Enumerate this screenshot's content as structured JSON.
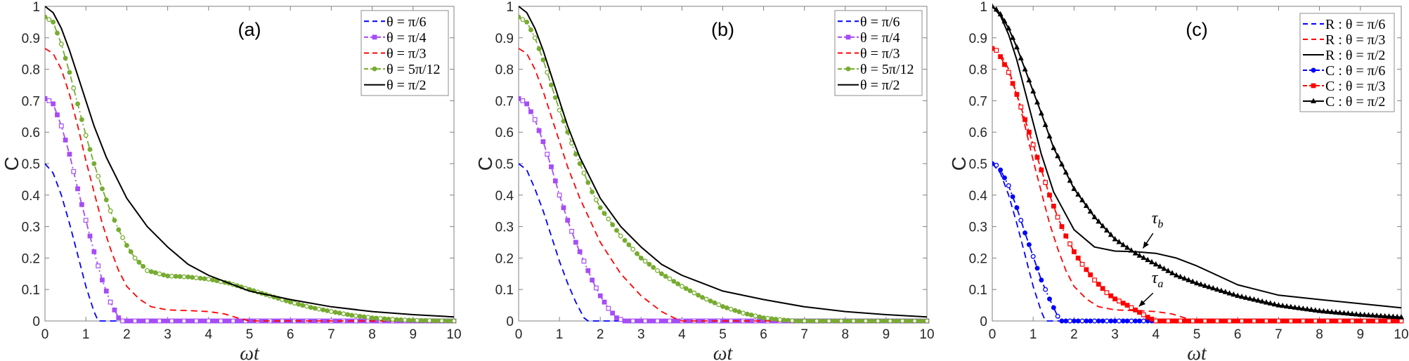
{
  "figure": {
    "colors": {
      "blue": "#0000FF",
      "purple": "#A64DF5",
      "red": "#FF0000",
      "green": "#77AC30",
      "black": "#000000",
      "axis": "#808080"
    }
  },
  "chart_data": [
    {
      "type": "line",
      "panel_label": "(a)",
      "xlabel": "ωt",
      "ylabel": "C",
      "xlim": [
        0,
        10
      ],
      "ylim": [
        0,
        1
      ],
      "xticks": [
        "0",
        "1",
        "2",
        "3",
        "4",
        "5",
        "6",
        "7",
        "8",
        "9",
        "10"
      ],
      "yticks": [
        "0",
        "0.1",
        "0.2",
        "0.3",
        "0.4",
        "0.5",
        "0.6",
        "0.7",
        "0.8",
        "0.9",
        "1"
      ],
      "grid": false,
      "legend_position": "upper right",
      "legend": [
        "θ = π/6",
        "θ = π/4",
        "θ = π/3",
        "θ = 5π/12",
        "θ = π/2"
      ],
      "series": [
        {
          "name": "θ = π/6",
          "color": "blue",
          "style": "dashed",
          "marker": "none",
          "x": [
            0,
            0.2,
            0.4,
            0.6,
            0.8,
            1.0,
            1.2,
            1.3,
            1.4,
            10
          ],
          "y": [
            0.5,
            0.47,
            0.4,
            0.31,
            0.21,
            0.11,
            0.03,
            0.0,
            0.0,
            0.0
          ]
        },
        {
          "name": "θ = π/4",
          "color": "purple",
          "style": "dashdot",
          "marker": "square",
          "x": [
            0,
            0.1,
            0.2,
            0.4,
            0.6,
            0.8,
            1.0,
            1.2,
            1.4,
            1.6,
            1.8,
            1.9,
            10
          ],
          "y": [
            0.707,
            0.7,
            0.69,
            0.62,
            0.53,
            0.42,
            0.32,
            0.22,
            0.13,
            0.06,
            0.01,
            0.0,
            0.0
          ]
        },
        {
          "name": "θ = π/3",
          "color": "red",
          "style": "dashed",
          "marker": "none",
          "x": [
            0,
            0.2,
            0.4,
            0.6,
            0.8,
            1.0,
            1.2,
            1.4,
            1.6,
            1.8,
            2.0,
            2.3,
            2.6,
            3.0,
            3.5,
            4.0,
            4.4,
            4.7,
            5.0,
            10
          ],
          "y": [
            0.866,
            0.85,
            0.8,
            0.72,
            0.62,
            0.51,
            0.41,
            0.31,
            0.23,
            0.16,
            0.11,
            0.07,
            0.045,
            0.035,
            0.033,
            0.03,
            0.022,
            0.01,
            0.0,
            0.0
          ]
        },
        {
          "name": "θ = 5π/12",
          "color": "green",
          "style": "dashdot",
          "marker": "circle",
          "x": [
            0,
            0.2,
            0.4,
            0.6,
            0.8,
            1.0,
            1.2,
            1.4,
            1.6,
            1.8,
            2.0,
            2.2,
            2.5,
            3.0,
            3.5,
            4.0,
            4.5,
            5.0,
            5.5,
            6.0,
            6.5,
            7.0,
            7.5,
            8.0,
            8.5,
            9.0,
            10
          ],
          "y": [
            0.966,
            0.95,
            0.88,
            0.79,
            0.69,
            0.59,
            0.5,
            0.42,
            0.35,
            0.29,
            0.24,
            0.2,
            0.16,
            0.143,
            0.14,
            0.133,
            0.12,
            0.1,
            0.08,
            0.06,
            0.043,
            0.03,
            0.018,
            0.01,
            0.005,
            0.002,
            0.0
          ]
        },
        {
          "name": "θ = π/2",
          "color": "black",
          "style": "solid",
          "marker": "none",
          "x": [
            0,
            0.2,
            0.4,
            0.6,
            0.8,
            1.0,
            1.2,
            1.5,
            2.0,
            2.5,
            3.0,
            3.5,
            4.0,
            4.5,
            5.0,
            6.0,
            7.0,
            8.0,
            9.0,
            10
          ],
          "y": [
            1.0,
            0.98,
            0.93,
            0.86,
            0.78,
            0.7,
            0.62,
            0.52,
            0.39,
            0.3,
            0.235,
            0.18,
            0.145,
            0.12,
            0.095,
            0.068,
            0.045,
            0.03,
            0.02,
            0.013
          ]
        }
      ]
    },
    {
      "type": "line",
      "panel_label": "(b)",
      "xlabel": "ωt",
      "ylabel": "C",
      "xlim": [
        0,
        10
      ],
      "ylim": [
        0,
        1
      ],
      "xticks": [
        "0",
        "1",
        "2",
        "3",
        "4",
        "5",
        "6",
        "7",
        "8",
        "9",
        "10"
      ],
      "yticks": [
        "0",
        "0.1",
        "0.2",
        "0.3",
        "0.4",
        "0.5",
        "0.6",
        "0.7",
        "0.8",
        "0.9",
        "1"
      ],
      "grid": false,
      "legend_position": "upper right",
      "legend": [
        "θ = π/6",
        "θ = π/4",
        "θ = π/3",
        "θ = 5π/12",
        "θ = π/2"
      ],
      "series": [
        {
          "name": "θ = π/6",
          "color": "blue",
          "style": "dashed",
          "marker": "none",
          "x": [
            0,
            0.2,
            0.4,
            0.6,
            0.8,
            1.0,
            1.2,
            1.4,
            1.6,
            1.7,
            10
          ],
          "y": [
            0.5,
            0.48,
            0.42,
            0.35,
            0.27,
            0.19,
            0.12,
            0.06,
            0.01,
            0.0,
            0.0
          ]
        },
        {
          "name": "θ = π/4",
          "color": "purple",
          "style": "dashdot",
          "marker": "square",
          "x": [
            0,
            0.1,
            0.2,
            0.4,
            0.6,
            0.8,
            1.0,
            1.2,
            1.4,
            1.6,
            1.8,
            2.0,
            2.2,
            2.4,
            2.6,
            10
          ],
          "y": [
            0.707,
            0.7,
            0.69,
            0.64,
            0.57,
            0.49,
            0.4,
            0.32,
            0.25,
            0.19,
            0.13,
            0.08,
            0.04,
            0.01,
            0.0,
            0.0
          ]
        },
        {
          "name": "θ = π/3",
          "color": "red",
          "style": "dashed",
          "marker": "none",
          "x": [
            0,
            0.2,
            0.4,
            0.6,
            0.8,
            1.0,
            1.2,
            1.5,
            2.0,
            2.5,
            3.0,
            3.5,
            3.8,
            4.0,
            10
          ],
          "y": [
            0.866,
            0.85,
            0.8,
            0.73,
            0.65,
            0.57,
            0.49,
            0.39,
            0.25,
            0.15,
            0.08,
            0.03,
            0.01,
            0.0,
            0.0
          ]
        },
        {
          "name": "θ = 5π/12",
          "color": "green",
          "style": "dashdot",
          "marker": "circle",
          "x": [
            0,
            0.2,
            0.4,
            0.6,
            0.8,
            1.0,
            1.2,
            1.4,
            1.6,
            1.8,
            2.0,
            2.5,
            3.0,
            3.5,
            4.0,
            4.5,
            5.0,
            5.5,
            6.0,
            6.5,
            6.8,
            10
          ],
          "y": [
            0.966,
            0.95,
            0.9,
            0.83,
            0.75,
            0.67,
            0.6,
            0.53,
            0.47,
            0.41,
            0.36,
            0.27,
            0.2,
            0.15,
            0.11,
            0.075,
            0.046,
            0.025,
            0.01,
            0.003,
            0.0,
            0.0
          ]
        },
        {
          "name": "θ = π/2",
          "color": "black",
          "style": "solid",
          "marker": "none",
          "x": [
            0,
            0.2,
            0.4,
            0.6,
            0.8,
            1.0,
            1.2,
            1.5,
            2.0,
            2.5,
            3.0,
            3.5,
            4.0,
            4.5,
            5.0,
            6.0,
            7.0,
            8.0,
            9.0,
            10
          ],
          "y": [
            1.0,
            0.98,
            0.93,
            0.86,
            0.78,
            0.7,
            0.62,
            0.52,
            0.39,
            0.3,
            0.235,
            0.18,
            0.145,
            0.12,
            0.095,
            0.068,
            0.045,
            0.03,
            0.02,
            0.013
          ]
        }
      ]
    },
    {
      "type": "line",
      "panel_label": "(c)",
      "xlabel": "ωt",
      "ylabel": "C",
      "xlim": [
        0,
        10
      ],
      "ylim": [
        0,
        1
      ],
      "xticks": [
        "0",
        "1",
        "2",
        "3",
        "4",
        "5",
        "6",
        "7",
        "8",
        "9",
        "10"
      ],
      "yticks": [
        "0",
        "0.1",
        "0.2",
        "0.3",
        "0.4",
        "0.5",
        "0.6",
        "0.7",
        "0.8",
        "0.9",
        "1"
      ],
      "grid": false,
      "legend_position": "upper right",
      "legend": [
        "R : θ = π/6",
        "R : θ = π/3",
        "R : θ = π/2",
        "C : θ = π/6",
        "C : θ = π/3",
        "C : θ = π/2"
      ],
      "annotations": [
        {
          "text": "τ_b",
          "label": "τ",
          "sub": "b",
          "x": 3.6,
          "y": 0.22,
          "text_x": 4.0,
          "text_y": 0.31
        },
        {
          "text": "τ_a",
          "label": "τ",
          "sub": "a",
          "x": 3.5,
          "y": 0.035,
          "text_x": 4.0,
          "text_y": 0.12
        }
      ],
      "series": [
        {
          "name": "R : θ = π/6",
          "color": "blue",
          "style": "dashed",
          "marker": "none",
          "x": [
            0,
            0.2,
            0.4,
            0.6,
            0.8,
            1.0,
            1.2,
            1.3,
            1.4,
            10
          ],
          "y": [
            0.5,
            0.47,
            0.4,
            0.31,
            0.21,
            0.11,
            0.03,
            0.0,
            0.0,
            0.0
          ]
        },
        {
          "name": "R : θ = π/3",
          "color": "red",
          "style": "dashed",
          "marker": "none",
          "x": [
            0,
            0.2,
            0.4,
            0.6,
            0.8,
            1.0,
            1.2,
            1.4,
            1.6,
            1.8,
            2.0,
            2.3,
            2.6,
            3.0,
            3.5,
            4.0,
            4.4,
            4.7,
            5.0,
            10
          ],
          "y": [
            0.866,
            0.85,
            0.8,
            0.72,
            0.62,
            0.51,
            0.41,
            0.31,
            0.23,
            0.16,
            0.11,
            0.07,
            0.045,
            0.035,
            0.033,
            0.03,
            0.022,
            0.01,
            0.0,
            0.0
          ]
        },
        {
          "name": "R : θ = π/2",
          "color": "black",
          "style": "solid",
          "marker": "none",
          "x": [
            0,
            0.2,
            0.4,
            0.6,
            0.8,
            1.0,
            1.2,
            1.5,
            2.0,
            2.5,
            3.0,
            3.5,
            4.0,
            4.5,
            5.0,
            5.5,
            6.0,
            7.0,
            8.0,
            9.0,
            10
          ],
          "y": [
            1.0,
            0.97,
            0.91,
            0.83,
            0.73,
            0.63,
            0.53,
            0.41,
            0.29,
            0.235,
            0.222,
            0.22,
            0.215,
            0.2,
            0.175,
            0.145,
            0.115,
            0.082,
            0.068,
            0.055,
            0.042
          ]
        },
        {
          "name": "C : θ = π/6",
          "color": "blue",
          "style": "dashdot",
          "marker": "circle",
          "x": [
            0,
            0.1,
            0.2,
            0.4,
            0.6,
            0.8,
            1.0,
            1.2,
            1.4,
            1.6,
            1.7,
            10
          ],
          "y": [
            0.5,
            0.495,
            0.48,
            0.43,
            0.36,
            0.28,
            0.205,
            0.13,
            0.07,
            0.015,
            0.0,
            0.0
          ]
        },
        {
          "name": "C : θ = π/3",
          "color": "red",
          "style": "dashdot",
          "marker": "square",
          "x": [
            0,
            0.1,
            0.2,
            0.4,
            0.6,
            0.8,
            1.0,
            1.2,
            1.4,
            1.6,
            1.8,
            2.0,
            2.2,
            2.5,
            2.8,
            3.0,
            3.3,
            3.5,
            3.8,
            4.0,
            10
          ],
          "y": [
            0.866,
            0.86,
            0.84,
            0.79,
            0.72,
            0.64,
            0.56,
            0.48,
            0.4,
            0.33,
            0.27,
            0.22,
            0.18,
            0.13,
            0.09,
            0.07,
            0.05,
            0.035,
            0.012,
            0.0,
            0.0
          ]
        },
        {
          "name": "C : θ = π/2",
          "color": "black",
          "style": "solid",
          "marker": "triangle",
          "x": [
            0,
            0.1,
            0.2,
            0.4,
            0.6,
            0.8,
            1.0,
            1.2,
            1.5,
            2.0,
            2.5,
            3.0,
            3.5,
            4.0,
            4.5,
            5.0,
            5.5,
            6.0,
            7.0,
            8.0,
            9.0,
            10
          ],
          "y": [
            1.0,
            0.99,
            0.975,
            0.93,
            0.87,
            0.8,
            0.73,
            0.66,
            0.55,
            0.42,
            0.33,
            0.26,
            0.215,
            0.18,
            0.145,
            0.12,
            0.1,
            0.08,
            0.05,
            0.032,
            0.02,
            0.012
          ]
        }
      ]
    }
  ]
}
